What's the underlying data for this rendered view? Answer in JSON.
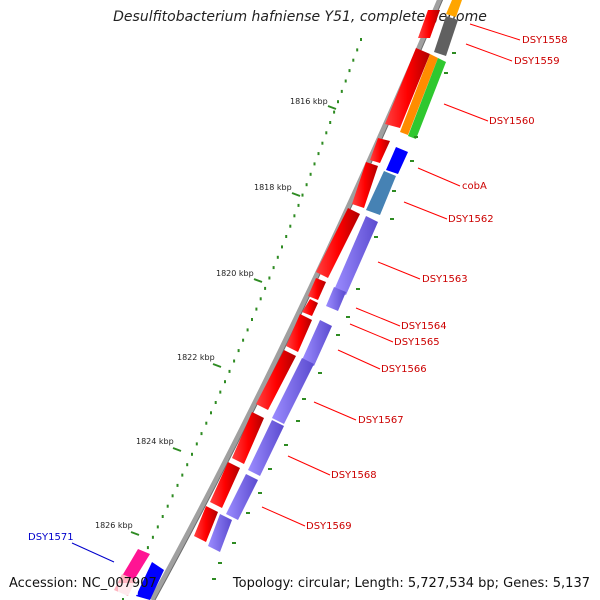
{
  "title": "Desulfitobacterium hafniense Y51, complete genome",
  "footer": {
    "accession": "Accession: NC_007907",
    "summary": "Topology: circular; Length: 5,727,534 bp; Genes: 5,137"
  },
  "scale": {
    "tick_labels": [
      "1816 kbp",
      "1818 kbp",
      "1820 kbp",
      "1822 kbp",
      "1824 kbp",
      "1826 kbp"
    ]
  },
  "genes": [
    {
      "label": "DSY1558",
      "color": "#cc0000"
    },
    {
      "label": "DSY1559",
      "color": "#cc0000"
    },
    {
      "label": "DSY1560",
      "color": "#cc0000"
    },
    {
      "label": "cobA",
      "color": "#cc0000"
    },
    {
      "label": "DSY1562",
      "color": "#cc0000"
    },
    {
      "label": "DSY1563",
      "color": "#cc0000"
    },
    {
      "label": "DSY1564",
      "color": "#cc0000"
    },
    {
      "label": "DSY1565",
      "color": "#cc0000"
    },
    {
      "label": "DSY1566",
      "color": "#cc0000"
    },
    {
      "label": "DSY1567",
      "color": "#cc0000"
    },
    {
      "label": "DSY1568",
      "color": "#cc0000"
    },
    {
      "label": "DSY1569",
      "color": "#cc0000"
    },
    {
      "label": "DSY1571",
      "color": "#0000cc"
    }
  ],
  "colors": {
    "backbone": "#808080",
    "strand_forward": "#ff0000",
    "strand_cog": "#7b68ee",
    "tick": "#2e8b22",
    "dot": "#2e8b22"
  }
}
